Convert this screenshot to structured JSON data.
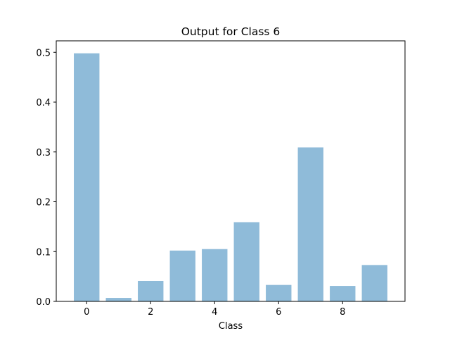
{
  "chart_data": {
    "type": "bar",
    "title": "Output for Class 6",
    "xlabel": "Class",
    "ylabel": "",
    "categories": [
      0,
      1,
      2,
      3,
      4,
      5,
      6,
      7,
      8,
      9
    ],
    "values": [
      0.498,
      0.007,
      0.041,
      0.102,
      0.105,
      0.159,
      0.033,
      0.309,
      0.031,
      0.073
    ],
    "xlim": [
      -0.95,
      9.95
    ],
    "ylim": [
      0,
      0.523
    ],
    "xticks": [
      0,
      2,
      4,
      6,
      8
    ],
    "yticks": [
      0.0,
      0.1,
      0.2,
      0.3,
      0.4,
      0.5
    ],
    "xtick_labels": [
      "0",
      "2",
      "4",
      "6",
      "8"
    ],
    "ytick_labels": [
      "0.0",
      "0.1",
      "0.2",
      "0.3",
      "0.4",
      "0.5"
    ],
    "bar_color": "#8fbbd9",
    "grid": false,
    "legend": "none"
  }
}
